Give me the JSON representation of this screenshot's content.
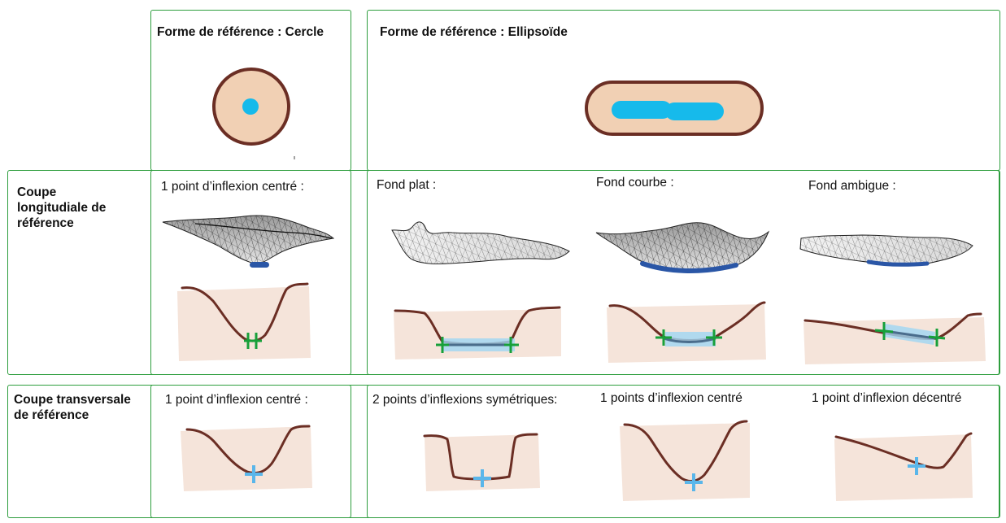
{
  "headers": {
    "cercle": "Forme de référence : Cercle",
    "ellipsoide": "Forme de référence : Ellipsoïde"
  },
  "rows": {
    "longitudinale": "Coupe\nlongitudiale de\nréférence",
    "transversale": "Coupe transversale\nde référence"
  },
  "longitudinale": {
    "cercle": "1 point d’inflexion centré :",
    "plat": "Fond plat :",
    "courbe": "Fond courbe :",
    "ambigue": "Fond ambigue :"
  },
  "transversale": {
    "cercle": "1 point d’inflexion centré :",
    "symetriques": "2 points d’inflexions symétriques:",
    "centre": "1 points d’inflexion centré",
    "decentre": "1 point d’inflexion décentré"
  },
  "colors": {
    "frame": "#2e9e3e",
    "skin": "#f1d0b4",
    "sketch_bg": "#f5e4da",
    "outline": "#6b2e24",
    "cyan": "#16baeb",
    "inflection_green": "#18a03a",
    "inflection_blue": "#5ab6ea",
    "bottom_blue": "#2a56a6"
  }
}
